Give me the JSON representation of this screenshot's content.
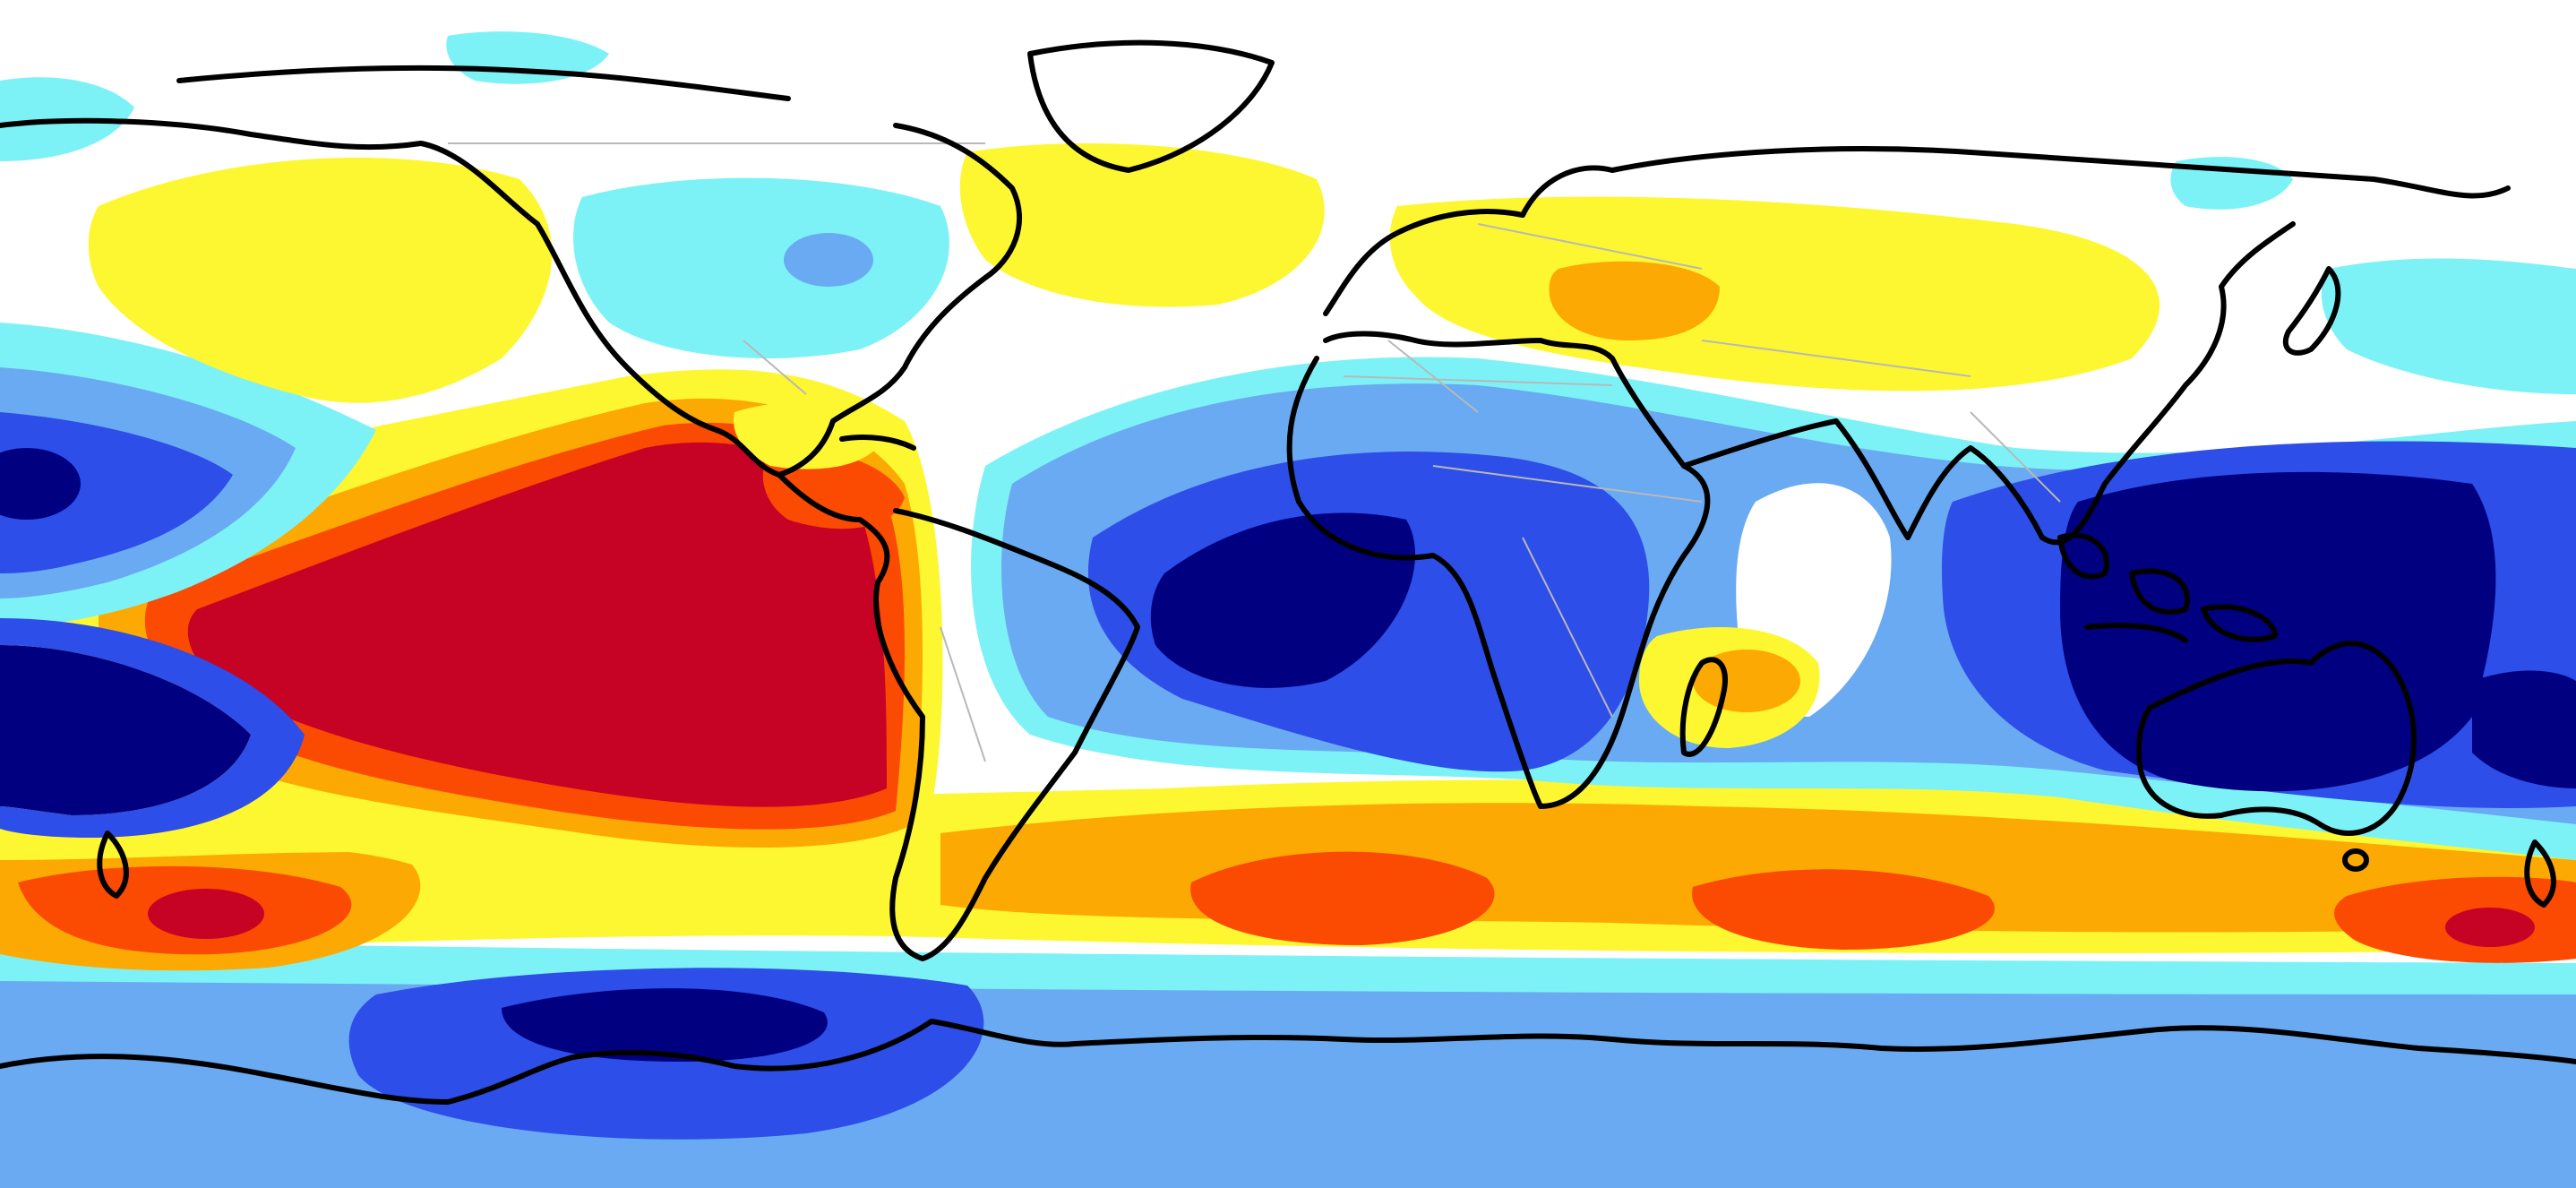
{
  "map": {
    "projection": "equirectangular",
    "extent": {
      "lon": [
        -180,
        180
      ],
      "lat": [
        -90,
        90
      ]
    },
    "background_color": "#ffffff",
    "coastline_color": "#000000",
    "border_color": "#b8b8b8",
    "color_levels": [
      {
        "level": -4,
        "color": "#000080"
      },
      {
        "level": -3,
        "color": "#2d4ee8"
      },
      {
        "level": -2,
        "color": "#6aaaf2"
      },
      {
        "level": -1,
        "color": "#7df2f6"
      },
      {
        "level": 0,
        "color": "#ffffff"
      },
      {
        "level": 1,
        "color": "#fdf731"
      },
      {
        "level": 2,
        "color": "#fca903"
      },
      {
        "level": 3,
        "color": "#fb4a02"
      },
      {
        "level": 4,
        "color": "#c70325"
      }
    ]
  }
}
